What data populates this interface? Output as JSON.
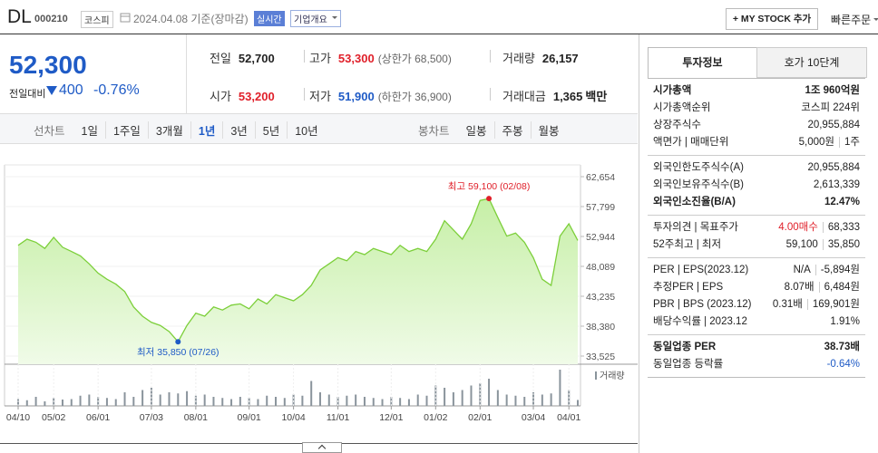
{
  "header": {
    "name": "DL",
    "code": "000210",
    "market": "코스피",
    "date": "2024.04.08 기준(장마감)",
    "realtime": "실시간",
    "company": "기업개요",
    "mystock": "+ MY STOCK 추가",
    "quick": "빠른주문"
  },
  "quote": {
    "price": "52,300",
    "change_label": "전일대비",
    "change": "400",
    "change_rate": "-0.76%",
    "items": [
      {
        "label": "전일",
        "value": "52,700"
      },
      {
        "label": "고가",
        "value": "53,300",
        "note": "(상한가 68,500)"
      },
      {
        "label": "거래량",
        "value": "26,157"
      },
      {
        "label": "시가",
        "value": "53,200"
      },
      {
        "label": "저가",
        "value": "51,900",
        "note": "(하한가 36,900)"
      },
      {
        "label": "거래대금",
        "value": "1,365",
        "unit": "백만"
      }
    ]
  },
  "tabs": {
    "line_label": "선차트",
    "periods": [
      "1일",
      "1주일",
      "3개월",
      "1년",
      "3년",
      "5년",
      "10년"
    ],
    "active": 3,
    "candle_label": "봉차트",
    "candles": [
      "일봉",
      "주봉",
      "월봉"
    ]
  },
  "chart": {
    "type": "line",
    "color": "#7ccf3a",
    "ylim": [
      33525,
      62654
    ],
    "yticks": [
      {
        "value": 62654,
        "label": "62,654"
      },
      {
        "value": 57799,
        "label": "57,799"
      },
      {
        "value": 52944,
        "label": "52,944"
      },
      {
        "value": 48089,
        "label": "48,089"
      },
      {
        "value": 43235,
        "label": "43,235"
      },
      {
        "value": 38380,
        "label": "38,380"
      },
      {
        "value": 33525,
        "label": "33,525"
      }
    ],
    "categories": [
      "04/10",
      null,
      null,
      null,
      "05/02",
      null,
      null,
      null,
      null,
      "06/01",
      null,
      null,
      null,
      null,
      null,
      "07/03",
      null,
      null,
      null,
      null,
      "08/01",
      null,
      null,
      null,
      null,
      null,
      "09/01",
      null,
      null,
      null,
      null,
      "10/04",
      null,
      null,
      null,
      null,
      "11/01",
      null,
      null,
      null,
      null,
      null,
      "12/01",
      null,
      null,
      null,
      null,
      "01/02",
      null,
      null,
      null,
      null,
      "02/01",
      null,
      null,
      null,
      null,
      null,
      "03/04",
      null,
      null,
      null,
      "04/01",
      null
    ],
    "values": [
      51500,
      52500,
      52000,
      51000,
      52800,
      51200,
      50500,
      49800,
      48500,
      47000,
      46000,
      45200,
      44000,
      41500,
      40000,
      39000,
      38500,
      37500,
      35850,
      38500,
      40500,
      40000,
      41500,
      41000,
      41800,
      42000,
      41200,
      42800,
      42000,
      43500,
      43000,
      42500,
      43500,
      45000,
      47500,
      48500,
      49500,
      49000,
      50500,
      50000,
      51000,
      50500,
      50000,
      51500,
      50500,
      51000,
      50500,
      52500,
      55500,
      54000,
      52500,
      55000,
      58800,
      59100,
      56000,
      53000,
      53500,
      52000,
      49500,
      46000,
      45000,
      53000,
      55000,
      52300
    ],
    "high_index": 53,
    "high_label": "최고 59,100 (02/08)",
    "low_index": 18,
    "low_label": "최저 35,850 (07/26)",
    "volume": {
      "label": "거래량",
      "color": "#8a949c",
      "values": [
        30000,
        25000,
        40000,
        20000,
        35000,
        28000,
        30000,
        45000,
        50000,
        40000,
        35000,
        30000,
        60000,
        40000,
        70000,
        80000,
        50000,
        60000,
        55000,
        65000,
        45000,
        50000,
        40000,
        35000,
        30000,
        40000,
        35000,
        30000,
        45000,
        40000,
        35000,
        50000,
        45000,
        110000,
        60000,
        50000,
        40000,
        45000,
        50000,
        40000,
        35000,
        30000,
        40000,
        35000,
        30000,
        50000,
        45000,
        90000,
        80000,
        60000,
        70000,
        90000,
        100000,
        120000,
        70000,
        50000,
        45000,
        40000,
        60000,
        50000,
        55000,
        160000,
        70000,
        26157
      ]
    }
  },
  "info": {
    "tabs": [
      "투자정보",
      "호가 10단계"
    ],
    "groups": [
      [
        {
          "label": "시가총액",
          "values": [
            "1조 960억원"
          ]
        },
        {
          "label": "시가총액순위",
          "values": [
            "코스피 224위"
          ]
        },
        {
          "label": "상장주식수",
          "values": [
            "20,955,884"
          ]
        },
        {
          "label": "액면가 | 매매단위",
          "values": [
            "5,000원",
            "1주"
          ]
        }
      ],
      [
        {
          "label": "외국인한도주식수(A)",
          "values": [
            "20,955,884"
          ]
        },
        {
          "label": "외국인보유주식수(B)",
          "values": [
            "2,613,339"
          ]
        },
        {
          "label": "외국인소진율(B/A)",
          "values": [
            "12.47%"
          ]
        }
      ],
      [
        {
          "label": "투자의견 | 목표주가",
          "values": [
            "4.00매수",
            "68,333"
          ]
        },
        {
          "label": "52주최고 | 최저",
          "values": [
            "59,100",
            "35,850"
          ]
        }
      ],
      [
        {
          "label": "PER | EPS(2023.12)",
          "values": [
            "N/A",
            "-5,894원"
          ]
        },
        {
          "label": "추정PER | EPS",
          "values": [
            "8.07배",
            "6,484원"
          ]
        },
        {
          "label": "PBR | BPS (2023.12)",
          "values": [
            "0.31배",
            "169,901원"
          ]
        },
        {
          "label": "배당수익률 | 2023.12",
          "values": [
            "1.91%"
          ]
        }
      ],
      [
        {
          "label": "동일업종 PER",
          "values": [
            "38.73배"
          ]
        },
        {
          "label": "동일업종 등락률",
          "values": [
            "-0.64%"
          ]
        }
      ]
    ]
  }
}
